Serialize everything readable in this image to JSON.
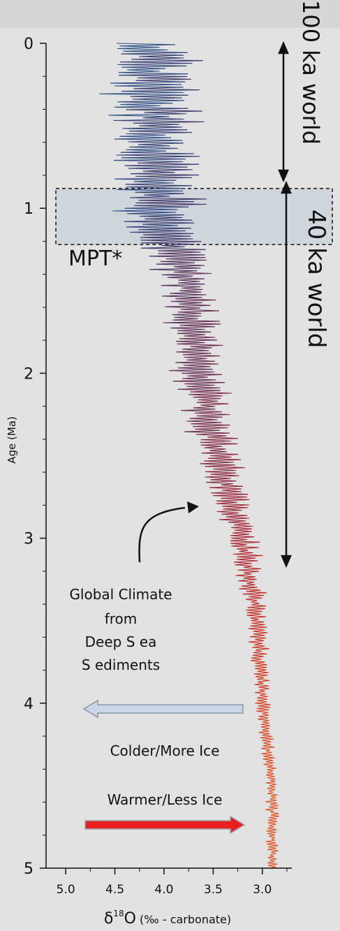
{
  "chart_data": {
    "type": "line",
    "title": "",
    "xlabel_main": "δ",
    "xlabel_sup": "18",
    "xlabel_tail": "O",
    "xlabel_unit": " (‰ - carbonate)",
    "ylabel": "Age (Ma)",
    "xlim": [
      5.2,
      2.7
    ],
    "x_reversed": true,
    "ylim": [
      0,
      5
    ],
    "y_reversed": true,
    "xticks": [
      "5.0",
      "4.5",
      "4.0",
      "3.5",
      "3.0"
    ],
    "xtick_values": [
      5.0,
      4.5,
      4.0,
      3.5,
      3.0
    ],
    "yticks": [
      "0",
      "1",
      "2",
      "3",
      "4",
      "5"
    ],
    "ytick_values": [
      0,
      1,
      2,
      3,
      4,
      5
    ],
    "grid": false,
    "series": [
      {
        "age_ma": [
          0.0,
          0.5,
          1.0,
          1.5,
          2.0,
          2.5,
          3.0,
          3.5,
          4.0,
          4.5,
          5.0
        ],
        "d18o_mean": [
          4.15,
          4.1,
          4.05,
          3.75,
          3.65,
          3.45,
          3.2,
          3.05,
          3.0,
          2.9,
          2.9
        ],
        "amplitude": [
          0.95,
          0.95,
          0.85,
          0.55,
          0.5,
          0.45,
          0.3,
          0.2,
          0.15,
          0.12,
          0.12
        ]
      }
    ],
    "color_scale": {
      "cold": "#1fb4f0",
      "mid": "#3b3b6e",
      "warm": "#d42020",
      "hot": "#f07020"
    }
  },
  "annotations": {
    "world_100": "100 ka world",
    "world_40": "40 ka world",
    "mpt": "MPT*",
    "mpt_band": {
      "age_top": 0.88,
      "age_bottom": 1.22,
      "fill": "#cfd6dc"
    },
    "arrow_label": "Global Climate from Deep Sea Sediments",
    "arrow_label_lines": [
      "Global Climate",
      "from",
      "Deep S ea",
      "S ediments"
    ],
    "arrow_target": {
      "age": 2.98,
      "d18o": 3.5
    },
    "colder": "Colder/More Ice",
    "warmer": "Warmer/Less Ice",
    "colder_color": "#c9d6e6",
    "warmer_color": "#e82020"
  }
}
